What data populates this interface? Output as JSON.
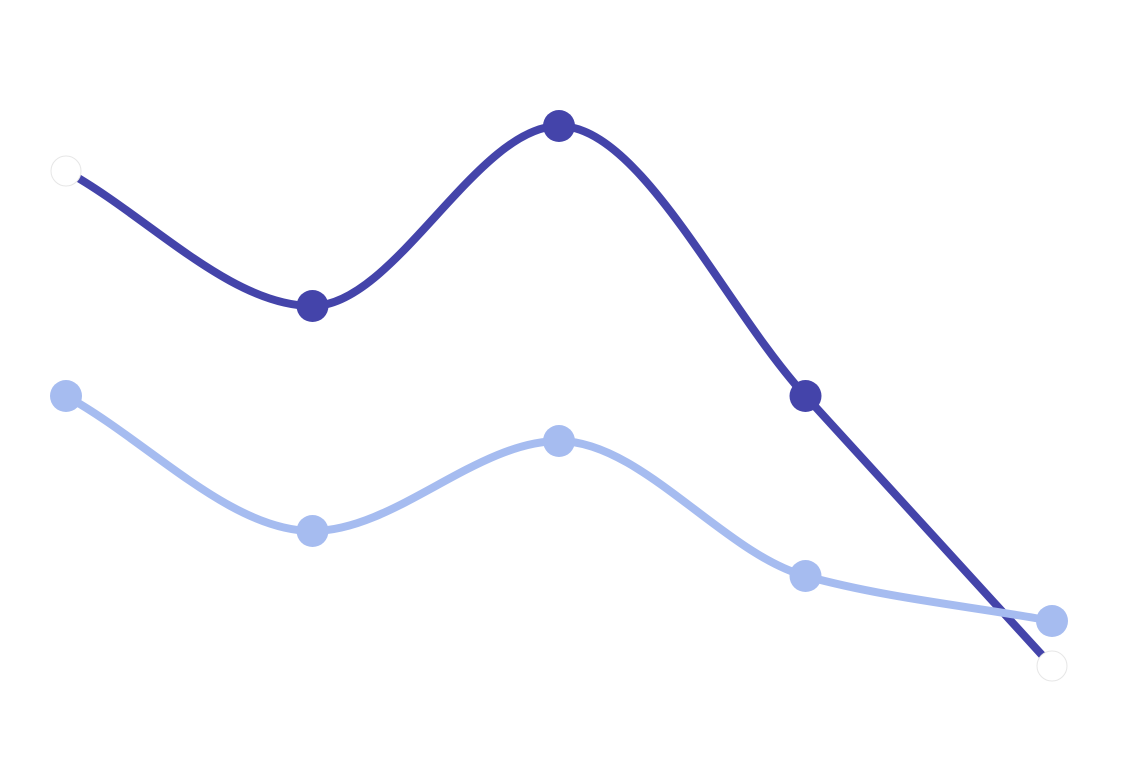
{
  "chart_data": {
    "type": "line",
    "x": [
      0,
      1,
      2,
      3,
      4
    ],
    "xlim": [
      0,
      4
    ],
    "ylim": [
      0,
      14
    ],
    "series": [
      {
        "color": "#4444aa",
        "values": [
          12,
          9,
          13,
          7,
          1
        ],
        "marker_colors": [
          "#ffffff",
          "#4444aa",
          "#4444aa",
          "#4444aa",
          "#ffffff"
        ]
      },
      {
        "color": "#a6bcf0",
        "values": [
          7,
          4,
          6,
          3,
          2
        ],
        "marker_colors": [
          "#a6bcf0",
          "#a6bcf0",
          "#a6bcf0",
          "#a6bcf0",
          "#a6bcf0"
        ]
      }
    ]
  }
}
